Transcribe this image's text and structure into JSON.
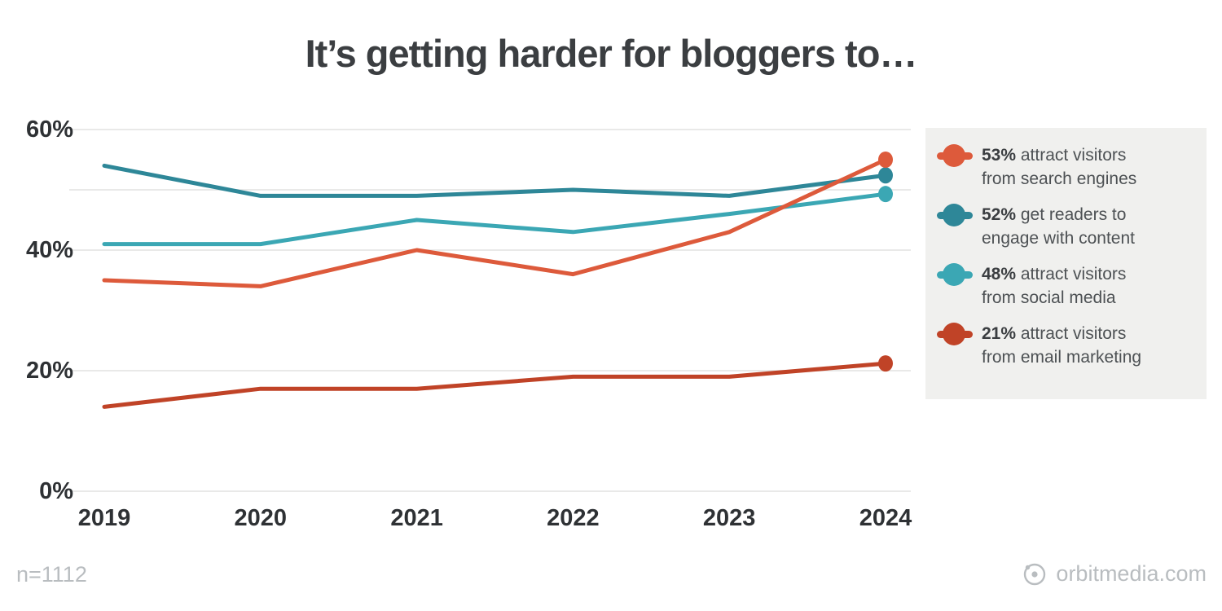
{
  "chart_data": {
    "type": "line",
    "title": "It’s getting harder for bloggers to…",
    "x_labels": [
      "2019",
      "2020",
      "2021",
      "2022",
      "2023",
      "2024"
    ],
    "y_ticks": [
      {
        "value": 60,
        "label": "60%"
      },
      {
        "value": 50,
        "label": ""
      },
      {
        "value": 40,
        "label": "40%"
      },
      {
        "value": 20,
        "label": "20%"
      },
      {
        "value": 0,
        "label": "0%"
      }
    ],
    "ylim": [
      0,
      62
    ],
    "grid": "horizontal",
    "legend_position": "right",
    "series": [
      {
        "name": "attract visitors from search engines",
        "percent_label": "53%",
        "legend_line1": "attract visitors",
        "legend_line2": "from search engines",
        "color": "#dd5a3b",
        "values": [
          35,
          34,
          40,
          36,
          43,
          53
        ],
        "endpoint_display_nudge": 2.0
      },
      {
        "name": "get readers to engage with content",
        "percent_label": "52%",
        "legend_line1": "get readers to",
        "legend_line2": "engage with content",
        "color": "#2e8798",
        "values": [
          54,
          49,
          49,
          50,
          49,
          52
        ],
        "endpoint_display_nudge": 0.4
      },
      {
        "name": "attract visitors from social media",
        "percent_label": "48%",
        "legend_line1": "attract visitors",
        "legend_line2": "from social media",
        "color": "#3ba7b4",
        "values": [
          41,
          41,
          45,
          43,
          46,
          48
        ],
        "endpoint_display_nudge": 1.3
      },
      {
        "name": "attract visitors from email marketing",
        "percent_label": "21%",
        "legend_line1": "attract visitors",
        "legend_line2": "from email marketing",
        "color": "#c04327",
        "values": [
          14,
          17,
          17,
          19,
          19,
          21
        ],
        "endpoint_display_nudge": 0.2
      }
    ],
    "draw_order": [
      2,
      1,
      3,
      0
    ]
  },
  "footer": {
    "sample_label": "n=1112",
    "brand": "orbitmedia.com"
  },
  "colors": {
    "title": "#3b3e41",
    "axis_label": "#2e3134",
    "gridline": "#e9e9e8",
    "legend_bg": "#f0f0ee",
    "legend_text": "#4d5154",
    "footer_text": "#b9bdc0"
  }
}
